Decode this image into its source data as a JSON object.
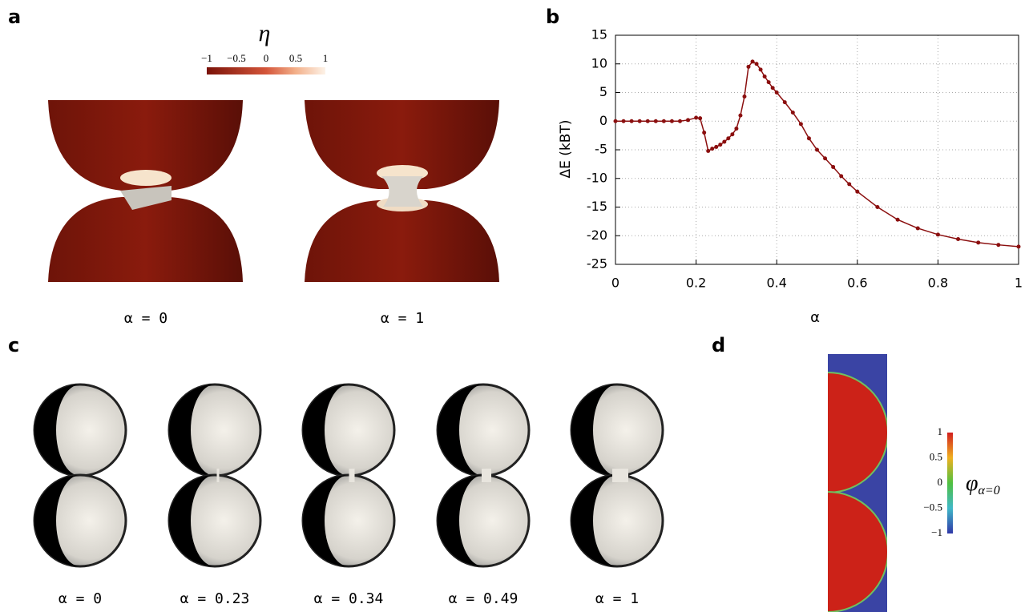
{
  "panel_labels": [
    "a",
    "b",
    "c",
    "d"
  ],
  "panel_a": {
    "colorbar_title": "η",
    "colorbar_ticks": [
      "−1",
      "−0.5",
      "0",
      "0.5",
      "1"
    ],
    "captions": [
      "α = 0",
      "α = 1"
    ]
  },
  "chart_data": {
    "type": "line",
    "x_label": "α",
    "y_label": "ΔE (kBT)",
    "color": "#8b0f0f",
    "grid": true,
    "x": [
      0,
      0.02,
      0.04,
      0.06,
      0.08,
      0.1,
      0.12,
      0.14,
      0.16,
      0.18,
      0.2,
      0.21,
      0.22,
      0.23,
      0.24,
      0.25,
      0.26,
      0.27,
      0.28,
      0.29,
      0.3,
      0.31,
      0.32,
      0.33,
      0.34,
      0.35,
      0.36,
      0.37,
      0.38,
      0.39,
      0.4,
      0.42,
      0.44,
      0.46,
      0.48,
      0.5,
      0.52,
      0.54,
      0.56,
      0.58,
      0.6,
      0.65,
      0.7,
      0.75,
      0.8,
      0.85,
      0.9,
      0.95,
      1
    ],
    "values": [
      0,
      0,
      0,
      0,
      0,
      0,
      0,
      0,
      0,
      0.2,
      0.6,
      0.5,
      -2,
      -5.2,
      -4.8,
      -4.5,
      -4.1,
      -3.6,
      -3,
      -2.3,
      -1.3,
      1,
      4.3,
      9.5,
      10.4,
      10,
      9,
      7.8,
      6.8,
      5.8,
      5,
      3.3,
      1.5,
      -0.5,
      -3,
      -5,
      -6.5,
      -8,
      -9.6,
      -11,
      -12.3,
      -15,
      -17.2,
      -18.7,
      -19.8,
      -20.6,
      -21.2,
      -21.6,
      -21.9
    ],
    "xlim": [
      0,
      1
    ],
    "xticks": [
      0,
      0.2,
      0.4,
      0.6,
      0.8,
      1
    ],
    "ylim": [
      -25,
      15
    ],
    "yticks": [
      -25,
      -20,
      -15,
      -10,
      -5,
      0,
      5,
      10,
      15
    ]
  },
  "panel_c": {
    "captions": [
      "α = 0",
      "α = 0.23",
      "α = 0.34",
      "α = 0.49",
      "α = 1"
    ]
  },
  "panel_d": {
    "colorbar_ticks": [
      "1",
      "0.5",
      "0",
      "−0.5",
      "−1"
    ],
    "colorbar_symbol": "φ",
    "colorbar_subscript": "α=0"
  }
}
